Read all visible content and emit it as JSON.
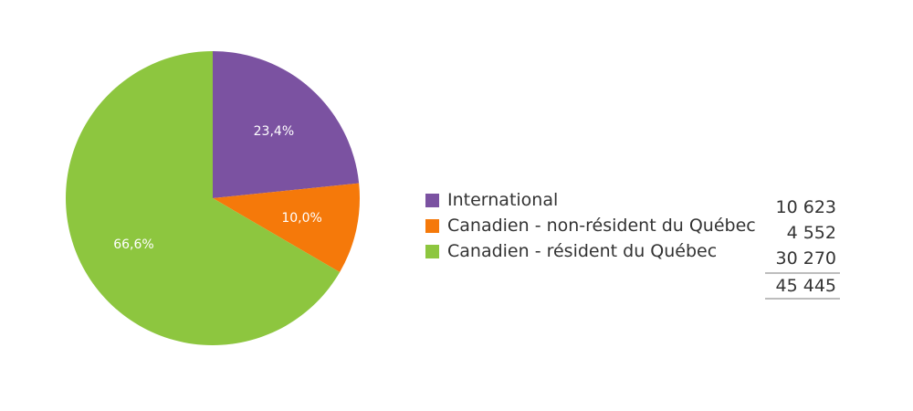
{
  "chart_data": {
    "type": "pie",
    "slices": [
      {
        "label": "International",
        "value": 10623,
        "percent_label": "23,4%",
        "color": "#7b52a1"
      },
      {
        "label": "Canadien - non-résident du Québec",
        "value": 4552,
        "percent_label": "10,0%",
        "color": "#f5790a"
      },
      {
        "label": "Canadien - résident du Québec",
        "value": 30270,
        "percent_label": "66,6%",
        "color": "#8dc63f"
      }
    ],
    "values_text": [
      "10 623",
      "4 552",
      "30 270"
    ],
    "total_text": "45 445",
    "legend_position": "right"
  }
}
